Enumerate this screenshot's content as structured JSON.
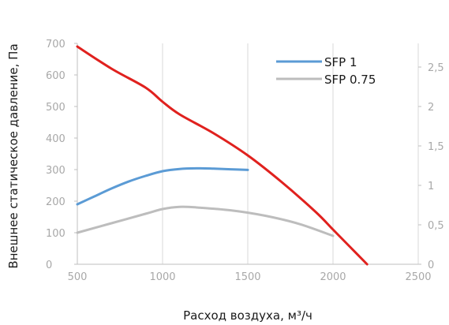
{
  "chart_data": {
    "type": "line",
    "xlabel": "Расход воздуха, м³/ч",
    "ylabel": "Внешнее статическое давление, Па",
    "xlim": [
      500,
      2500
    ],
    "ylim": [
      0,
      700
    ],
    "y2lim": [
      0,
      2.8
    ],
    "x_ticks": [
      "500",
      "1000",
      "1500",
      "2000",
      "2500"
    ],
    "y_ticks": [
      "0",
      "100",
      "200",
      "300",
      "400",
      "500",
      "600",
      "700"
    ],
    "y2_ticks": [
      "0",
      "0,5",
      "1",
      "1,5",
      "2",
      "2,5"
    ],
    "grid": "vertical",
    "legend_position": "top-right",
    "series": [
      {
        "name": "SFP 1",
        "color": "#5b9bd5",
        "x": [
          500,
          600,
          700,
          800,
          900,
          1000,
          1100,
          1200,
          1300,
          1400,
          1500
        ],
        "y": [
          190,
          215,
          240,
          262,
          280,
          295,
          302,
          304,
          303,
          301,
          299
        ]
      },
      {
        "name": "SFP 0.75",
        "color": "#bdbdbd",
        "x": [
          500,
          700,
          900,
          1000,
          1100,
          1200,
          1400,
          1600,
          1800,
          2000
        ],
        "y": [
          100,
          130,
          160,
          175,
          182,
          180,
          171,
          154,
          128,
          90
        ]
      },
      {
        "name": "",
        "color": "#e0211e",
        "x": [
          500,
          700,
          900,
          1000,
          1100,
          1300,
          1500,
          1700,
          1900,
          2000,
          2100,
          2200
        ],
        "y": [
          690,
          620,
          560,
          515,
          475,
          415,
          345,
          260,
          165,
          110,
          55,
          0
        ]
      }
    ]
  }
}
